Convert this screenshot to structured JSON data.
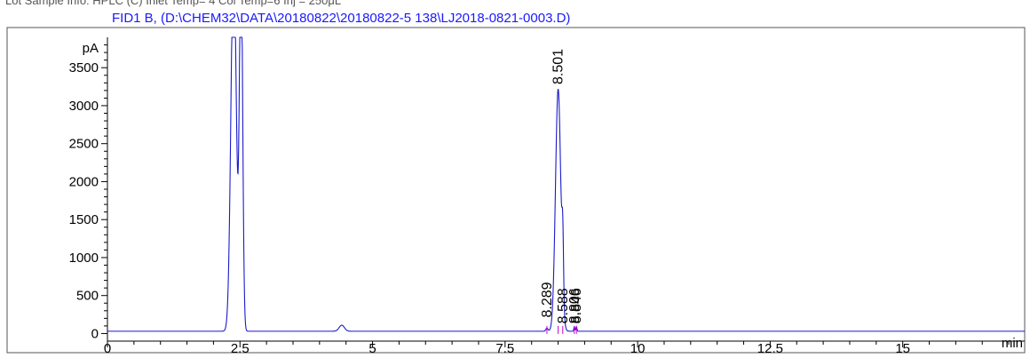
{
  "header_partial": "Lot Sample Info: HPLC (C) Inlet Temp= 4 Col Temp=6 Inj = 250μL",
  "colors": {
    "trace": "#1a1acc",
    "title": "#1a1aff",
    "baseline_marks": "#cc00cc",
    "axis": "#000000",
    "frame": "#555555"
  },
  "chart_data": {
    "type": "line",
    "title": "FID1 B,  (D:\\CHEM32\\DATA\\20180822\\20180822-5 138\\LJ2018-0821-0003.D)",
    "xlabel": "min",
    "ylabel": "pA",
    "xlim": [
      0,
      17.3
    ],
    "ylim": [
      -100,
      3900
    ],
    "x_ticks": [
      0,
      2.5,
      5,
      7.5,
      10,
      12.5,
      15
    ],
    "x_tick_labels": [
      "0",
      "2.5",
      "5",
      "7.5",
      "10",
      "12.5",
      "15"
    ],
    "y_ticks": [
      0,
      500,
      1000,
      1500,
      2000,
      2500,
      3000,
      3500
    ],
    "y_tick_labels": [
      "0",
      "500",
      "1000",
      "1500",
      "2000",
      "2500",
      "3000",
      "3500"
    ],
    "baseline_pA": 30,
    "peaks": [
      {
        "rt": 2.38,
        "height": 5000,
        "width": 0.05
      },
      {
        "rt": 2.52,
        "height": 5000,
        "width": 0.03
      },
      {
        "rt": 4.42,
        "height": 80,
        "width": 0.05
      },
      {
        "rt": 8.289,
        "height": 40,
        "width": 0.02
      },
      {
        "rt": 8.501,
        "height": 3190,
        "width": 0.05
      },
      {
        "rt": 8.588,
        "height": 830,
        "width": 0.015
      },
      {
        "rt": 8.806,
        "height": 60,
        "width": 0.01
      },
      {
        "rt": 8.846,
        "height": 60,
        "width": 0.01
      }
    ],
    "peak_labels": [
      {
        "rt": 8.289,
        "text": "8.289",
        "label_y": 210
      },
      {
        "rt": 8.501,
        "text": "8.501",
        "label_y": 3280
      },
      {
        "rt": 8.588,
        "text": "8.588",
        "label_y": 130
      },
      {
        "rt": 8.806,
        "text": "8.806",
        "label_y": 130
      },
      {
        "rt": 8.846,
        "text": "8.846",
        "label_y": 130
      }
    ],
    "grid": false,
    "legend": "none"
  }
}
